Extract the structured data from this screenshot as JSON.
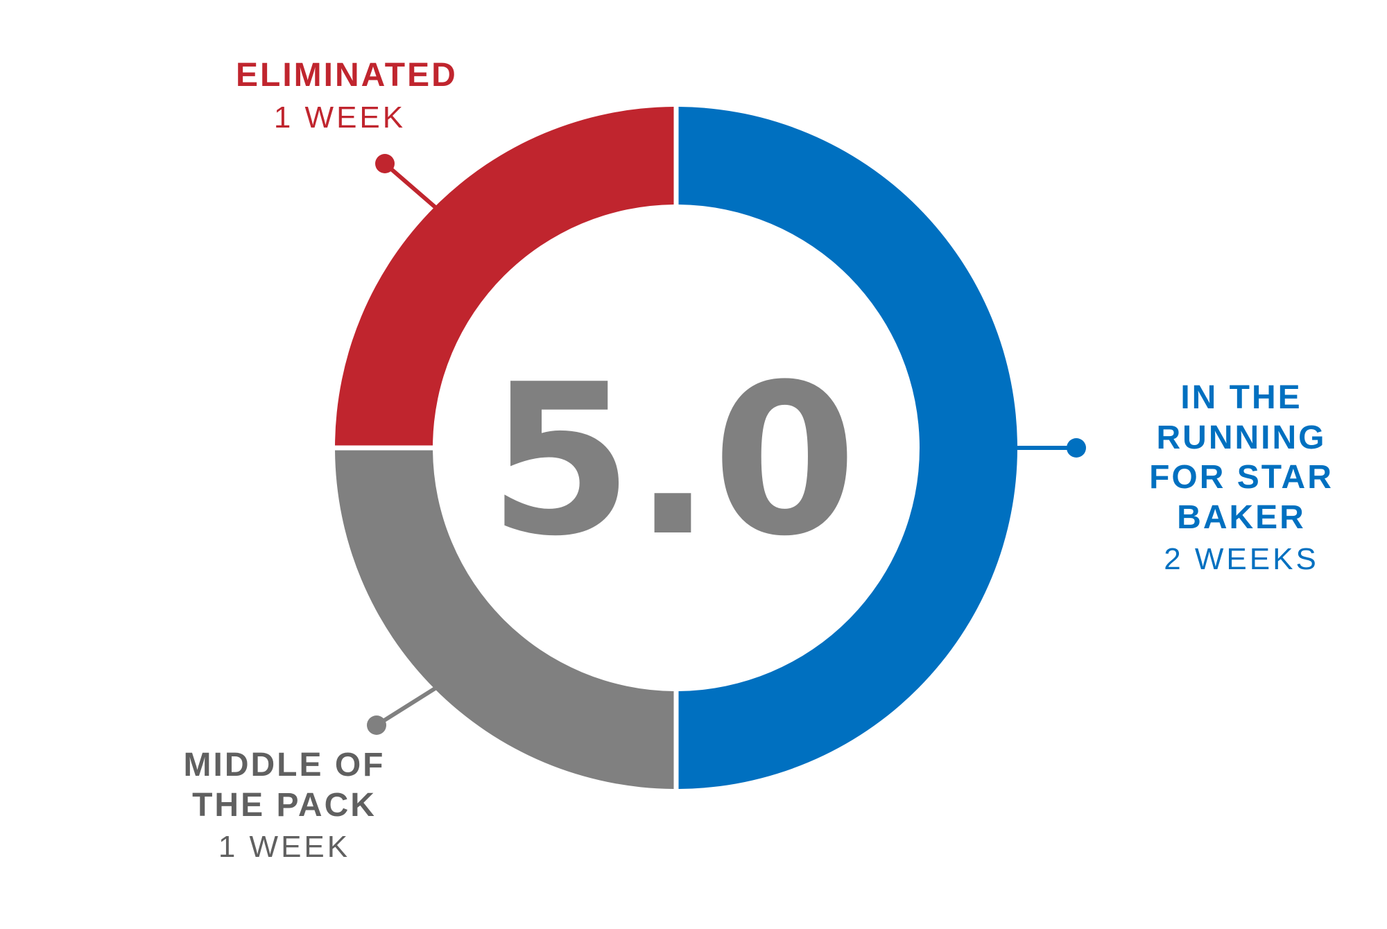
{
  "chart_data": {
    "type": "pie",
    "center_value": "5.0",
    "total": 4,
    "start": "top",
    "direction": "clockwise",
    "colors": {
      "running": "#0070C0",
      "middle": "#808080",
      "eliminated": "#C0252E"
    },
    "slices": [
      {
        "id": "running",
        "label_lines": [
          "In the running",
          "for star baker"
        ],
        "sub": "2 weeks",
        "value": 2
      },
      {
        "id": "middle",
        "label_lines": [
          "Middle of",
          "the pack"
        ],
        "sub": "1 week",
        "value": 1
      },
      {
        "id": "eliminated",
        "label_lines": [
          "Eliminated"
        ],
        "sub": "1 week",
        "value": 1
      }
    ]
  }
}
